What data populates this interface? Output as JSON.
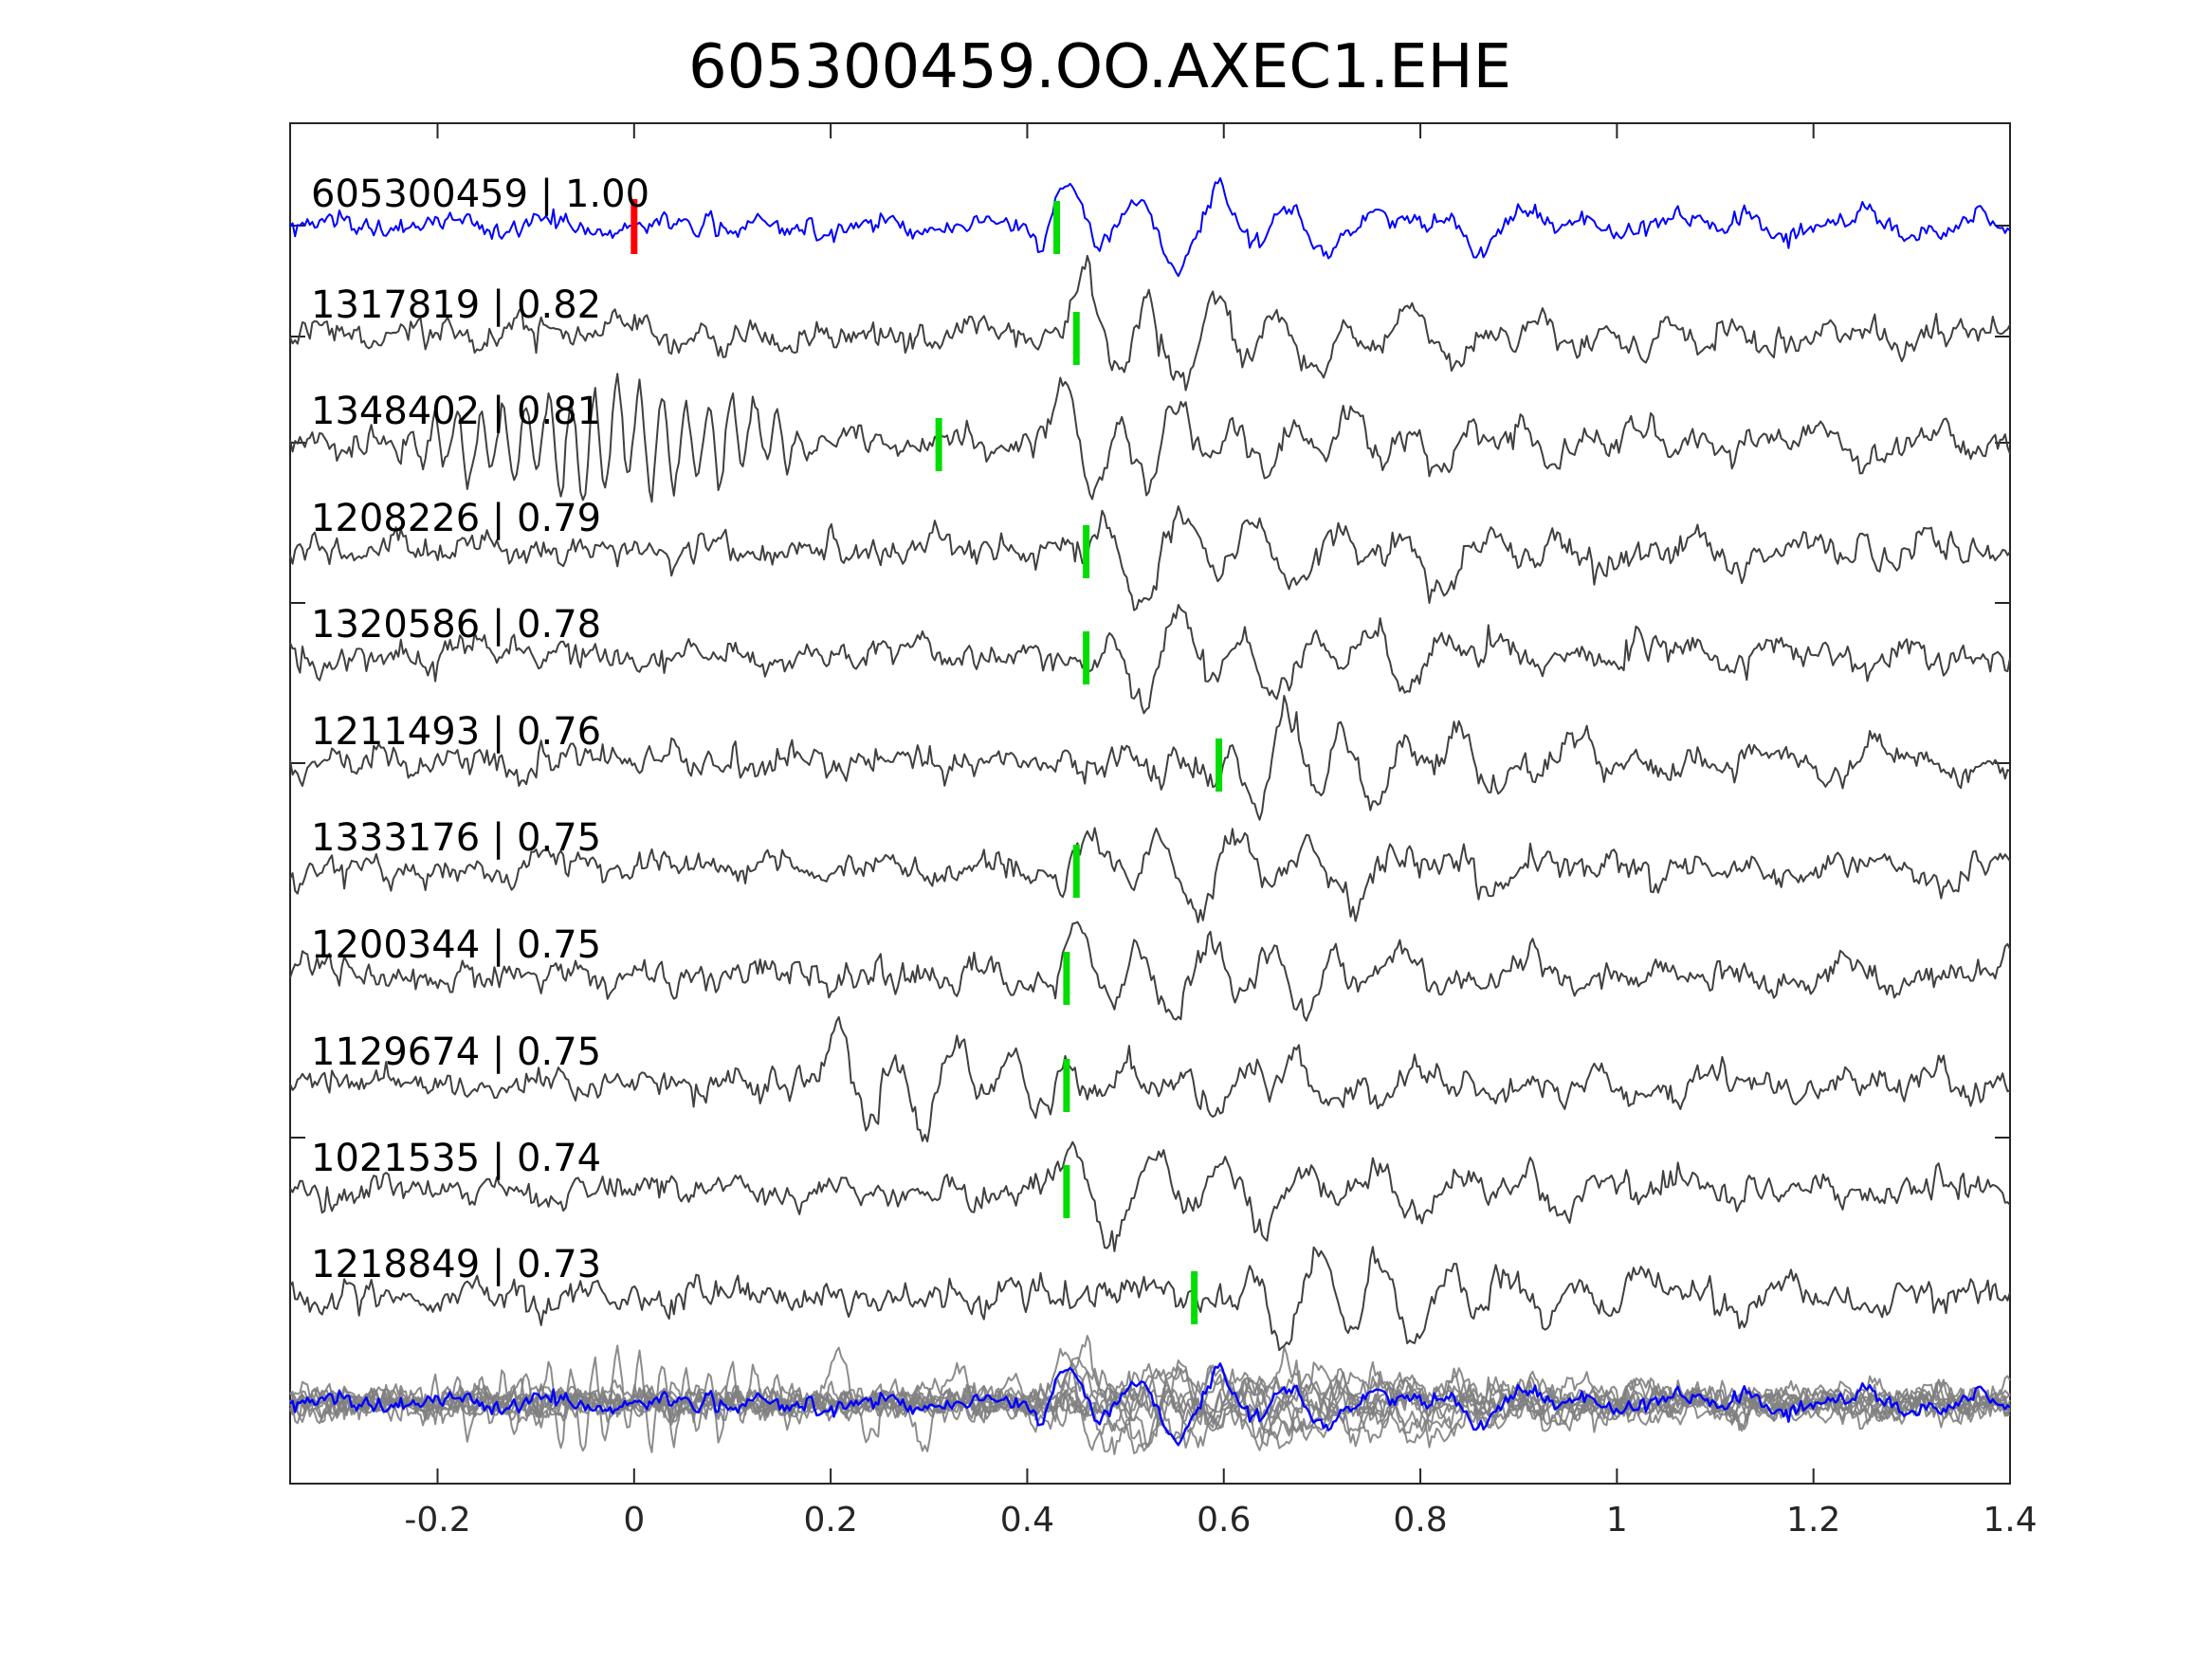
{
  "chart_data": {
    "type": "line",
    "title": "605300459.OO.AXEC1.EHE",
    "xlim": [
      -0.35,
      1.4
    ],
    "x_ticks": [
      -0.2,
      0,
      0.2,
      0.4,
      0.6,
      0.8,
      1,
      1.2,
      1.4
    ],
    "x_tick_labels": [
      "-0.2",
      "0",
      "0.2",
      "0.4",
      "0.6",
      "0.8",
      "1",
      "1.2",
      "1.4"
    ],
    "grid": false,
    "colors": {
      "template": "#0000ff",
      "trace": "#404040",
      "stack_trace": "#808080",
      "reference_pick": "#ff0000",
      "detection_pick": "#00dd00",
      "axes": "#262626"
    },
    "series": [
      {
        "name": "605300459",
        "cc": "1.00",
        "label": "605300459 | 1.00",
        "pick_time": 0.43,
        "first_arrival": 0.43,
        "template": true
      },
      {
        "name": "1317819",
        "cc": "0.82",
        "label": "1317819 | 0.82",
        "pick_time": 0.45,
        "first_arrival": 0.45
      },
      {
        "name": "1348402",
        "cc": "0.81",
        "label": "1348402 | 0.81",
        "pick_time": 0.31,
        "first_arrival": 0.43,
        "precursor": [
          -0.27,
          0.22
        ]
      },
      {
        "name": "1208226",
        "cc": "0.79",
        "label": "1208226 | 0.79",
        "pick_time": 0.46,
        "first_arrival": 0.47
      },
      {
        "name": "1320586",
        "cc": "0.78",
        "label": "1320586 | 0.78",
        "pick_time": 0.46,
        "first_arrival": 0.48
      },
      {
        "name": "1211493",
        "cc": "0.76",
        "label": "1211493 | 0.76",
        "pick_time": 0.595,
        "first_arrival": 0.6
      },
      {
        "name": "1333176",
        "cc": "0.75",
        "label": "1333176 | 0.75",
        "pick_time": 0.45,
        "first_arrival": 0.45
      },
      {
        "name": "1200344",
        "cc": "0.75",
        "label": "1200344 | 0.75",
        "pick_time": 0.44,
        "first_arrival": 0.44
      },
      {
        "name": "1129674",
        "cc": "0.75",
        "label": "1129674 | 0.75",
        "pick_time": 0.44,
        "first_arrival": 0.2
      },
      {
        "name": "1021535",
        "cc": "0.74",
        "label": "1021535 | 0.74",
        "pick_time": 0.44,
        "first_arrival": 0.44
      },
      {
        "name": "1218849",
        "cc": "0.73",
        "label": "1218849 | 0.73",
        "pick_time": 0.57,
        "first_arrival": 0.62
      }
    ],
    "reference_pick_time": 0.0
  }
}
